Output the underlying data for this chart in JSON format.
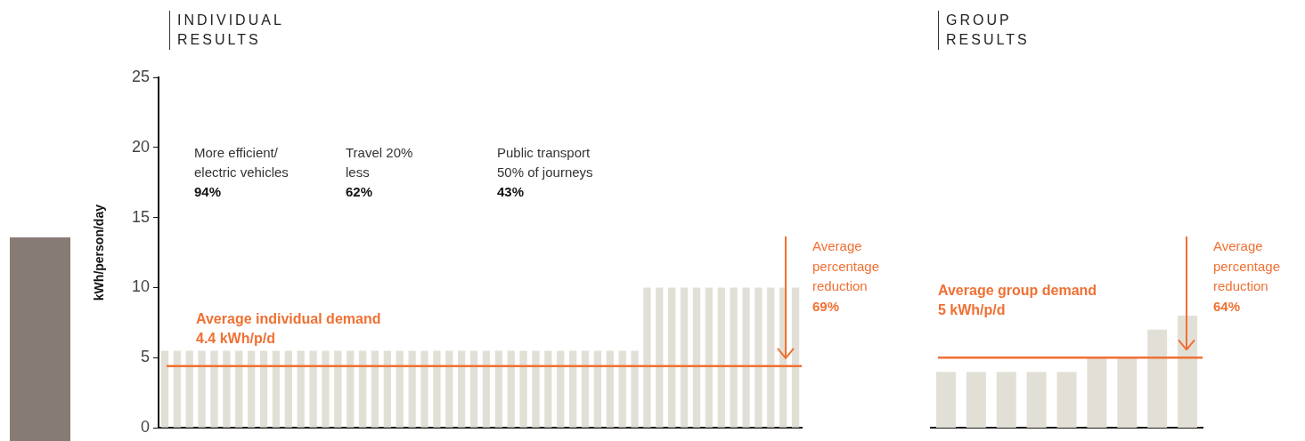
{
  "chart_data": [
    {
      "type": "bar",
      "title": "INDIVIDUAL\nRESULTS",
      "ylabel": "kWh/person/day",
      "categories": [
        null,
        null,
        null,
        null,
        null,
        null,
        null,
        null,
        null,
        null,
        null,
        null,
        null,
        null,
        null,
        null,
        null,
        null,
        null,
        null,
        null,
        null,
        null,
        null,
        null,
        null,
        null,
        null,
        null,
        null,
        null,
        null,
        null,
        null,
        null,
        null,
        null,
        null,
        null,
        null,
        null,
        null,
        null,
        null,
        null,
        null,
        null,
        null,
        null,
        null,
        null,
        null
      ],
      "values": [
        5.5,
        5.5,
        5.5,
        5.5,
        5.5,
        5.5,
        5.5,
        5.5,
        5.5,
        5.5,
        5.5,
        5.5,
        5.5,
        5.5,
        5.5,
        5.5,
        5.5,
        5.5,
        5.5,
        5.5,
        5.5,
        5.5,
        5.5,
        5.5,
        5.5,
        5.5,
        5.5,
        5.5,
        5.5,
        5.5,
        5.5,
        5.5,
        5.5,
        5.5,
        5.5,
        5.5,
        5.5,
        5.5,
        5.5,
        10,
        10,
        10,
        10,
        10,
        10,
        10,
        10,
        10,
        10,
        10,
        10,
        10
      ],
      "color": "#e2e0d6",
      "ylim": [
        0,
        25
      ],
      "yticks": [
        0,
        5,
        10,
        15,
        20,
        25
      ],
      "grid": false,
      "tick_labels": "y",
      "ref_lines": [
        {
          "axis": "y",
          "value": 4.4,
          "label": "Average individual demand\n4.4 kWh/p/d",
          "color": "#f07033"
        }
      ],
      "annotations": [
        "More efficient/\nelectric vehicles\n94%",
        "Travel 20%\nless\n62%",
        "Public transport\n50% of journeys\n43%",
        "Average\npercentage\nreduction\n69%"
      ]
    },
    {
      "type": "bar",
      "title": "GROUP\nRESULTS",
      "categories": [
        null,
        null,
        null,
        null,
        null,
        null,
        null,
        null,
        null
      ],
      "values": [
        4,
        4,
        4,
        4,
        4,
        5,
        5,
        7,
        8
      ],
      "color": "#e2e0d6",
      "ylim": [
        0,
        25
      ],
      "grid": false,
      "tick_labels": false,
      "ref_lines": [
        {
          "axis": "y",
          "value": 5,
          "label": "Average group demand\n5 kWh/p/d",
          "color": "#f07033"
        }
      ],
      "annotations": [
        "Average\npercentage\nreduction\n64%"
      ]
    }
  ]
}
